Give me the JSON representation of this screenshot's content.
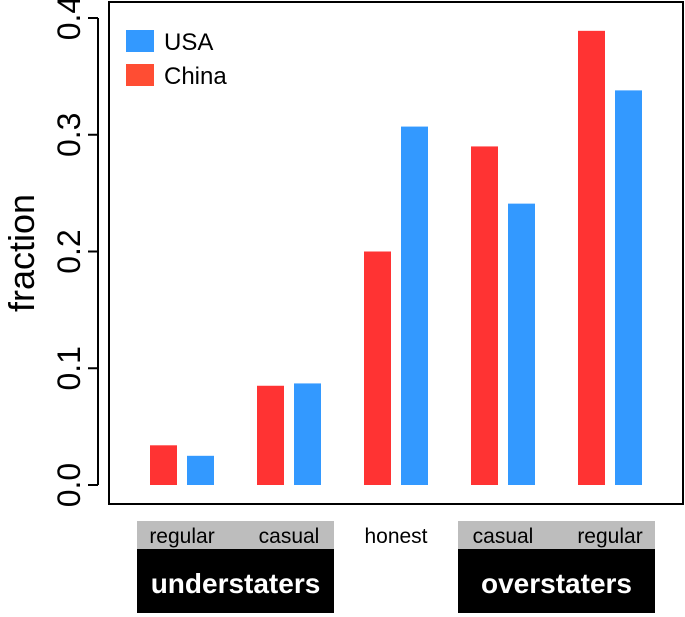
{
  "chart_data": {
    "type": "bar",
    "ylabel": "fraction",
    "ylim": [
      0,
      0.4
    ],
    "yticks": [
      0.0,
      0.1,
      0.2,
      0.3,
      0.4
    ],
    "ytick_labels": [
      "0.0",
      "0.1",
      "0.2",
      "0.3",
      "0.4"
    ],
    "categories": [
      "regular",
      "casual",
      "honest",
      "casual",
      "regular"
    ],
    "groups": [
      {
        "label": "understaters",
        "category_indices": [
          0,
          1
        ]
      },
      {
        "label": "overstaters",
        "category_indices": [
          3,
          4
        ]
      }
    ],
    "series": [
      {
        "name": "China",
        "color": "#ff3333",
        "values": [
          0.034,
          0.085,
          0.2,
          0.29,
          0.389
        ]
      },
      {
        "name": "USA",
        "color": "#3399ff",
        "values": [
          0.025,
          0.087,
          0.307,
          0.241,
          0.338
        ]
      }
    ],
    "legend": {
      "position": "top-left",
      "entries": [
        {
          "label": "USA",
          "color": "#3399ff"
        },
        {
          "label": "China",
          "color": "#ff4d33"
        }
      ]
    }
  }
}
